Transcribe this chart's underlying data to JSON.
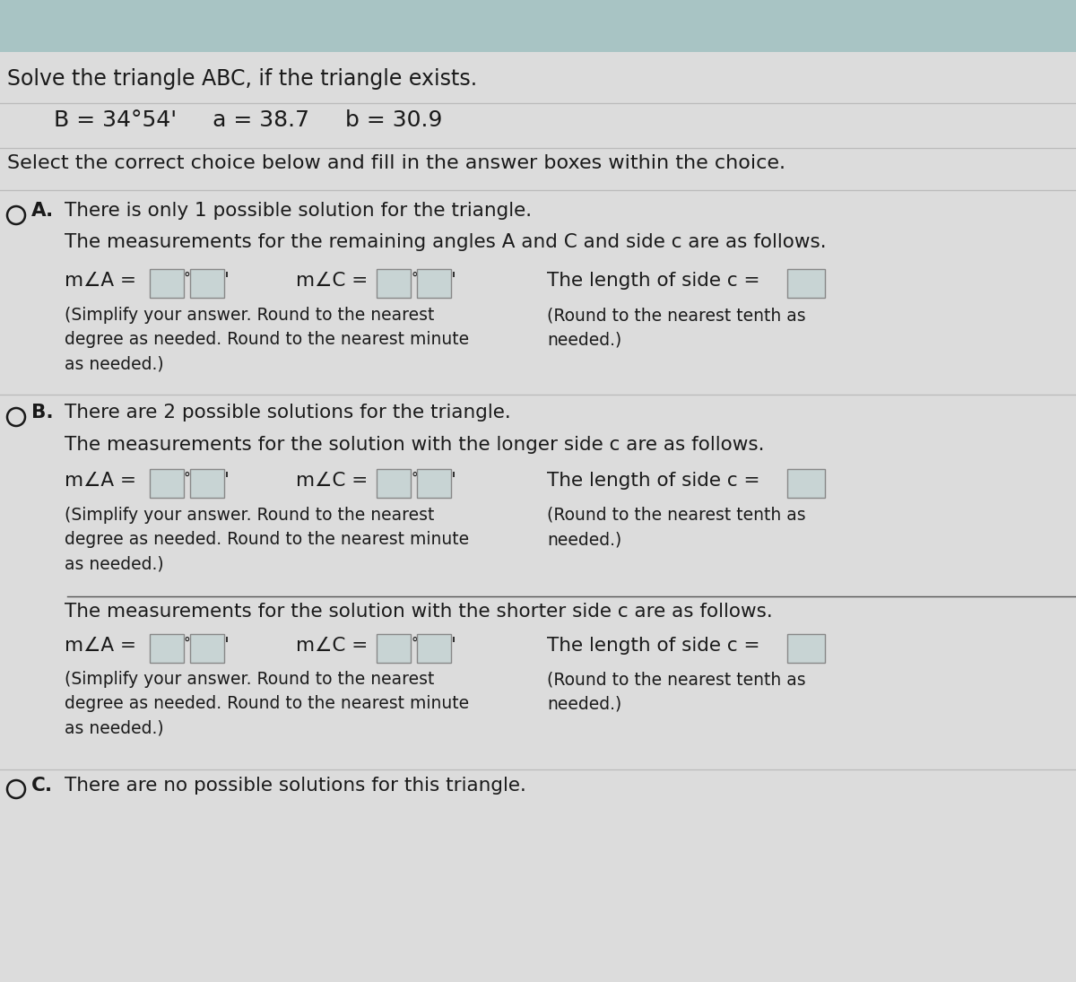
{
  "bg_color": "#d4dede",
  "panel_color": "#dcdcdc",
  "header_color": "#a8c4c4",
  "text_color": "#1a1a1a",
  "blue_color": "#1a3a8c",
  "box_color": "#c8d4d4",
  "title": "Solve the triangle ABC, if the triangle exists.",
  "given": "B = 34°54'     a = 38.7     b = 30.9",
  "instruction": "Select the correct choice below and fill in the answer boxes within the choice.",
  "option_a_label": "A.",
  "option_a_line1": "There is only 1 possible solution for the triangle.",
  "option_a_line2": "The measurements for the remaining angles A and C and side c are as follows.",
  "option_a_mA": "m∠A =",
  "option_a_mC": "m∠C =",
  "option_a_side": "The length of side c =",
  "option_a_note1": "(Simplify your answer. Round to the nearest\ndegree as needed. Round to the nearest minute\nas needed.)",
  "option_a_note2": "(Round to the nearest tenth as\nneeded.)",
  "option_b_label": "B.",
  "option_b_line1": "There are 2 possible solutions for the triangle.",
  "option_b_line2": "The measurements for the solution with the longer side c are as follows.",
  "option_b1_mA": "m∠A =",
  "option_b1_mC": "m∠C =",
  "option_b1_side": "The length of side c =",
  "option_b1_note1": "(Simplify your answer. Round to the nearest\ndegree as needed. Round to the nearest minute\nas needed.)",
  "option_b1_note2": "(Round to the nearest tenth as\nneeded.)",
  "option_b_line3": "The measurements for the solution with the shorter side c are as follows.",
  "option_b2_mA": "m∠A =",
  "option_b2_mC": "m∠C =",
  "option_b2_side": "The length of side c =",
  "option_b2_note1": "(Simplify your answer. Round to the nearest\ndegree as needed. Round to the nearest minute\nas needed.)",
  "option_b2_note2": "(Round to the nearest tenth as\nneeded.)",
  "option_c_label": "C.",
  "option_c_line1": "There are no possible solutions for this triangle."
}
